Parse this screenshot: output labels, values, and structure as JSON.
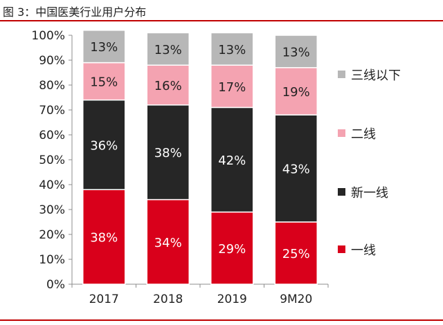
{
  "figure_title": "图 3：中国医美行业用户分布",
  "chart_data": {
    "type": "bar",
    "stacked": true,
    "categories": [
      "2017",
      "2018",
      "2019",
      "9M20"
    ],
    "ylim": [
      0,
      100
    ],
    "yticks": [
      "0%",
      "10%",
      "20%",
      "30%",
      "40%",
      "50%",
      "60%",
      "70%",
      "80%",
      "90%",
      "100%"
    ],
    "grid": false,
    "legend_position": "right",
    "series": [
      {
        "name": "一线",
        "color": "#d9001b",
        "label_color": "#ffffff",
        "values": [
          38,
          34,
          29,
          25
        ],
        "labels": [
          "38%",
          "34%",
          "29%",
          "25%"
        ]
      },
      {
        "name": "新一线",
        "color": "#262626",
        "label_color": "#ffffff",
        "values": [
          36,
          38,
          42,
          43
        ],
        "labels": [
          "36%",
          "38%",
          "42%",
          "43%"
        ]
      },
      {
        "name": "二线",
        "color": "#f4a3b1",
        "label_color": "#222222",
        "values": [
          15,
          16,
          17,
          19
        ],
        "labels": [
          "15%",
          "16%",
          "17%",
          "19%"
        ]
      },
      {
        "name": "三线以下",
        "color": "#b7b7b7",
        "label_color": "#222222",
        "values": [
          13,
          13,
          13,
          13
        ],
        "labels": [
          "13%",
          "13%",
          "13%",
          "13%"
        ]
      }
    ]
  }
}
